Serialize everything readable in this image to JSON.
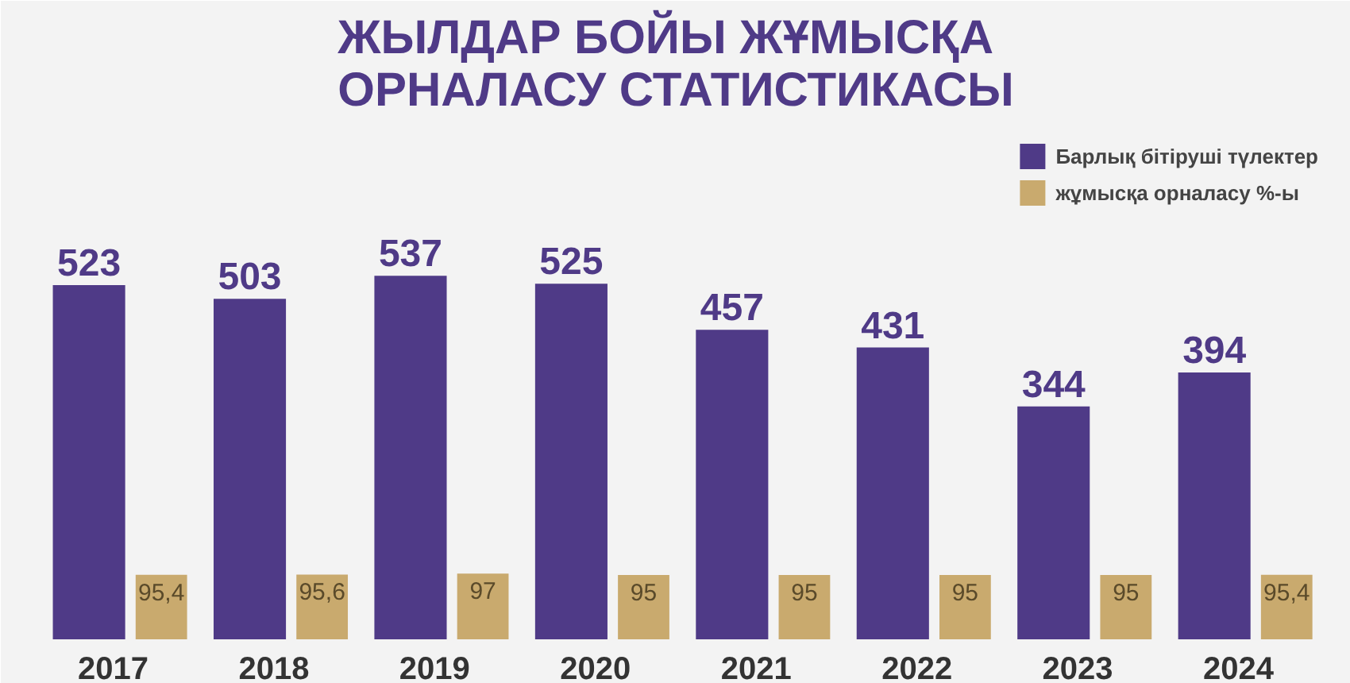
{
  "chart_data": {
    "type": "bar",
    "title": "ЖЫЛДАР БОЙЫ ЖҰМЫСҚА\nОРНАЛАСУ СТАТИСТИКАСЫ",
    "categories": [
      "2017",
      "2018",
      "2019",
      "2020",
      "2021",
      "2022",
      "2023",
      "2024"
    ],
    "series": [
      {
        "name": "Барлық бітіруші түлектер",
        "color": "#4f3a87",
        "values": [
          523,
          503,
          537,
          525,
          457,
          431,
          344,
          394
        ],
        "value_labels": [
          "523",
          "503",
          "537",
          "525",
          "457",
          "431",
          "344",
          "394"
        ]
      },
      {
        "name": "жұмысқа орналасу %-ы",
        "color": "#c9aa6e",
        "values": [
          95.4,
          95.6,
          97,
          95,
          95,
          95,
          95,
          95.4
        ],
        "value_labels": [
          "95,4",
          "95,6",
          "97",
          "95",
          "95",
          "95",
          "95",
          "95,4"
        ]
      }
    ],
    "ylim": [
      0,
      760
    ],
    "tick_labels": "x",
    "grid": false,
    "legend": "top right"
  }
}
